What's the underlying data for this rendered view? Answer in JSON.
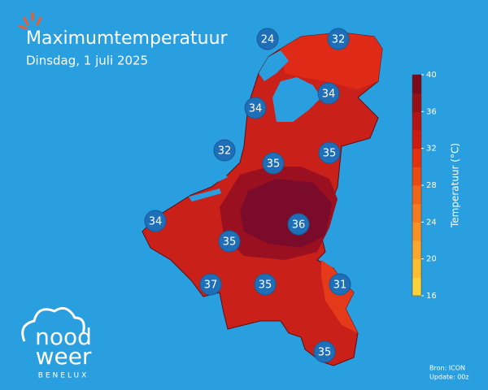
{
  "header": {
    "title": "Maximumtemperatuur",
    "subtitle": "Dinsdag, 1 juli 2025"
  },
  "markers": [
    24,
    32,
    34,
    34,
    32,
    35,
    35,
    34,
    36,
    35,
    37,
    35,
    31,
    35
  ],
  "colorbar": {
    "label": "Temperatuur (°C)",
    "lim": [
      16,
      40
    ],
    "ticks": [
      16,
      20,
      24,
      28,
      32,
      36,
      40
    ],
    "colors": [
      "#fcd23a",
      "#fbbd34",
      "#f9a62c",
      "#f89025",
      "#f57a1e",
      "#f06417",
      "#eb4b12",
      "#e3300f",
      "#cf1a12",
      "#b31416",
      "#961018",
      "#7a0b1d"
    ]
  },
  "logo": {
    "line1": "nood",
    "line2": "weer",
    "region": "BENELUX"
  },
  "source": {
    "model": "Bron: ICON",
    "update": "Update: 00z"
  }
}
